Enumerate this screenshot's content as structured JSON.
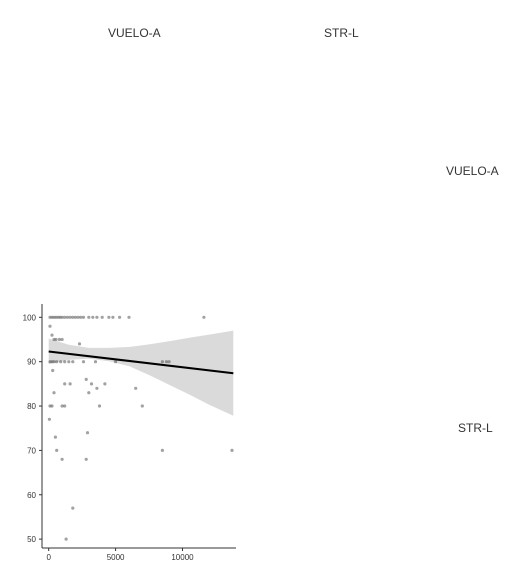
{
  "facets": {
    "columns": [
      "VUELO-A",
      "STR-L"
    ],
    "rows": [
      "VUELO-A",
      "STR-L"
    ]
  },
  "chart_data": {
    "type": "scatter",
    "title": "",
    "xlabel": "",
    "ylabel": "",
    "xlim": [
      -500,
      14000
    ],
    "ylim": [
      48,
      103
    ],
    "xticks": [
      0,
      5000,
      10000
    ],
    "yticks": [
      50,
      60,
      70,
      80,
      90,
      100
    ],
    "colors": {
      "points": "#555555",
      "fit": "#000000",
      "band": "#d3d3d3"
    },
    "points": [
      [
        100,
        100
      ],
      [
        250,
        100
      ],
      [
        400,
        100
      ],
      [
        550,
        100
      ],
      [
        700,
        100
      ],
      [
        850,
        100
      ],
      [
        1000,
        100
      ],
      [
        1200,
        100
      ],
      [
        1400,
        100
      ],
      [
        1600,
        100
      ],
      [
        1800,
        100
      ],
      [
        2000,
        100
      ],
      [
        2200,
        100
      ],
      [
        2400,
        100
      ],
      [
        2600,
        100
      ],
      [
        3000,
        100
      ],
      [
        3300,
        100
      ],
      [
        3600,
        100
      ],
      [
        4000,
        100
      ],
      [
        4500,
        100
      ],
      [
        4800,
        100
      ],
      [
        5300,
        100
      ],
      [
        6000,
        100
      ],
      [
        11600,
        100
      ],
      [
        100,
        98
      ],
      [
        250,
        96
      ],
      [
        400,
        95
      ],
      [
        550,
        95
      ],
      [
        800,
        95
      ],
      [
        1000,
        95
      ],
      [
        2300,
        94
      ],
      [
        100,
        90
      ],
      [
        250,
        90
      ],
      [
        400,
        90
      ],
      [
        600,
        90
      ],
      [
        900,
        90
      ],
      [
        1200,
        90
      ],
      [
        1500,
        90
      ],
      [
        1800,
        90
      ],
      [
        2600,
        90
      ],
      [
        3500,
        90
      ],
      [
        5000,
        90
      ],
      [
        8500,
        90
      ],
      [
        8800,
        90
      ],
      [
        9000,
        90
      ],
      [
        300,
        88
      ],
      [
        1200,
        85
      ],
      [
        1600,
        85
      ],
      [
        2800,
        86
      ],
      [
        3200,
        85
      ],
      [
        4200,
        85
      ],
      [
        3000,
        83
      ],
      [
        3600,
        84
      ],
      [
        6500,
        84
      ],
      [
        400,
        83
      ],
      [
        100,
        80
      ],
      [
        250,
        80
      ],
      [
        1000,
        80
      ],
      [
        1200,
        80
      ],
      [
        3800,
        80
      ],
      [
        7000,
        80
      ],
      [
        50,
        77
      ],
      [
        2900,
        74
      ],
      [
        500,
        73
      ],
      [
        600,
        70
      ],
      [
        2800,
        68
      ],
      [
        1000,
        68
      ],
      [
        8500,
        70
      ],
      [
        13700,
        70
      ],
      [
        1800,
        57
      ],
      [
        1300,
        50
      ]
    ],
    "fit": {
      "x": [
        0,
        13800
      ],
      "y": [
        92.3,
        87.4
      ]
    },
    "band": {
      "x": [
        0,
        1500,
        3000,
        4500,
        6000,
        7500,
        9000,
        10500,
        12000,
        13800
      ],
      "upper": [
        95.2,
        93.8,
        93.1,
        93.1,
        93.3,
        93.9,
        94.6,
        95.4,
        96.1,
        97.0
      ],
      "lower": [
        89.5,
        90.4,
        90.7,
        90.1,
        89.0,
        87.0,
        84.8,
        82.6,
        80.3,
        77.8
      ]
    }
  }
}
